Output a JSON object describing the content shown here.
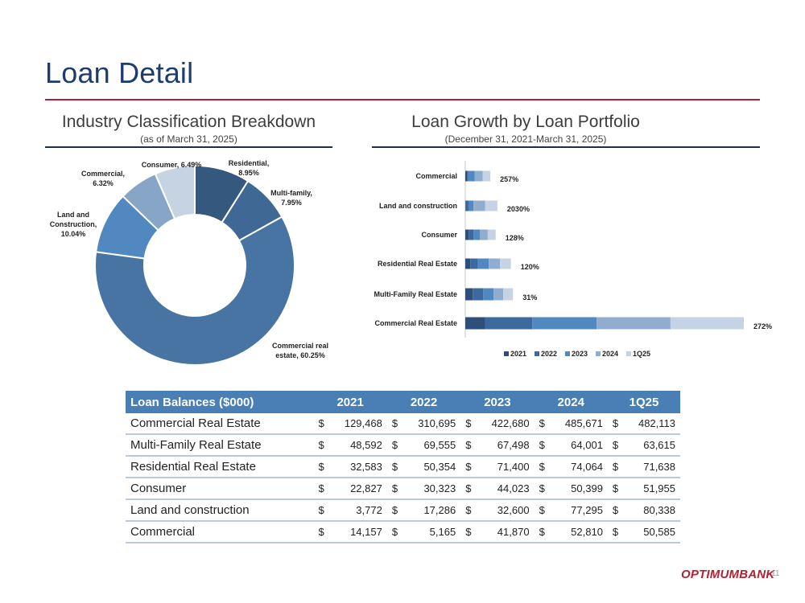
{
  "page": {
    "title": "Loan Detail",
    "page_number": "11",
    "logo_text": "OPTIMUMBANK"
  },
  "left_section": {
    "title": "Industry Classification Breakdown",
    "subtitle": "(as of March 31, 2025)"
  },
  "right_section": {
    "title": "Loan Growth by Loan Portfolio",
    "subtitle": "(December 31, 2021-March 31, 2025)"
  },
  "chart_data": [
    {
      "type": "pie",
      "title": "Industry Classification Breakdown",
      "donut": true,
      "slices": [
        {
          "label": "Residential,",
          "label2": "8.95%",
          "value": 8.95,
          "color": "#35587f"
        },
        {
          "label": "Multi-family,",
          "label2": "7.95%",
          "value": 7.95,
          "color": "#3f6994"
        },
        {
          "label": "Commercial real",
          "label2": "estate, 60.25%",
          "value": 60.25,
          "color": "#4774a3"
        },
        {
          "label": "Land and",
          "label2": "Construction,",
          "label3": "10.04%",
          "value": 10.04,
          "color": "#5188bf"
        },
        {
          "label": "Commercial,",
          "label2": "6.32%",
          "value": 6.32,
          "color": "#87a6c7"
        },
        {
          "label": "Consumer, 6.49%",
          "value": 6.49,
          "color": "#c6d3e3"
        }
      ]
    },
    {
      "type": "bar",
      "orientation": "horizontal",
      "stacked": true,
      "title": "Loan Growth by Loan Portfolio",
      "categories": [
        "Commercial",
        "Land and construction",
        "Consumer",
        "Residential Real Estate",
        "Multi-Family Real Estate",
        "Commercial Real Estate"
      ],
      "growth_labels": [
        "257%",
        "2030%",
        "128%",
        "120%",
        "31%",
        "272%"
      ],
      "series": [
        {
          "name": "2021",
          "color": "#2d4f7a",
          "values": [
            14157,
            3772,
            22827,
            32583,
            48592,
            129468
          ]
        },
        {
          "name": "2022",
          "color": "#3c6a9e",
          "values": [
            5165,
            17286,
            30323,
            50354,
            69555,
            310695
          ]
        },
        {
          "name": "2023",
          "color": "#5188bf",
          "values": [
            41870,
            32600,
            44023,
            71400,
            67498,
            422680
          ]
        },
        {
          "name": "2024",
          "color": "#90acce",
          "values": [
            52810,
            77295,
            50399,
            74064,
            64001,
            485671
          ]
        },
        {
          "name": "1Q25",
          "color": "#c5d3e4",
          "values": [
            50585,
            80338,
            51955,
            71638,
            63615,
            482113
          ]
        }
      ]
    }
  ],
  "table": {
    "header_label": "Loan Balances ($000)",
    "years": [
      "2021",
      "2022",
      "2023",
      "2024",
      "1Q25"
    ],
    "currency_symbol": "$",
    "rows": [
      {
        "category": "Commercial Real Estate",
        "values": [
          "129,468",
          "310,695",
          "422,680",
          "485,671",
          "482,113"
        ]
      },
      {
        "category": "Multi-Family Real Estate",
        "values": [
          "48,592",
          "69,555",
          "67,498",
          "64,001",
          "63,615"
        ]
      },
      {
        "category": "Residential Real Estate",
        "values": [
          "32,583",
          "50,354",
          "71,400",
          "74,064",
          "71,638"
        ]
      },
      {
        "category": "Consumer",
        "values": [
          "22,827",
          "30,323",
          "44,023",
          "50,399",
          "51,955"
        ]
      },
      {
        "category": "Land and construction",
        "values": [
          "3,772",
          "17,286",
          "32,600",
          "77,295",
          "80,338"
        ]
      },
      {
        "category": "Commercial",
        "values": [
          "14,157",
          "5,165",
          "41,870",
          "52,810",
          "50,585"
        ]
      }
    ]
  }
}
